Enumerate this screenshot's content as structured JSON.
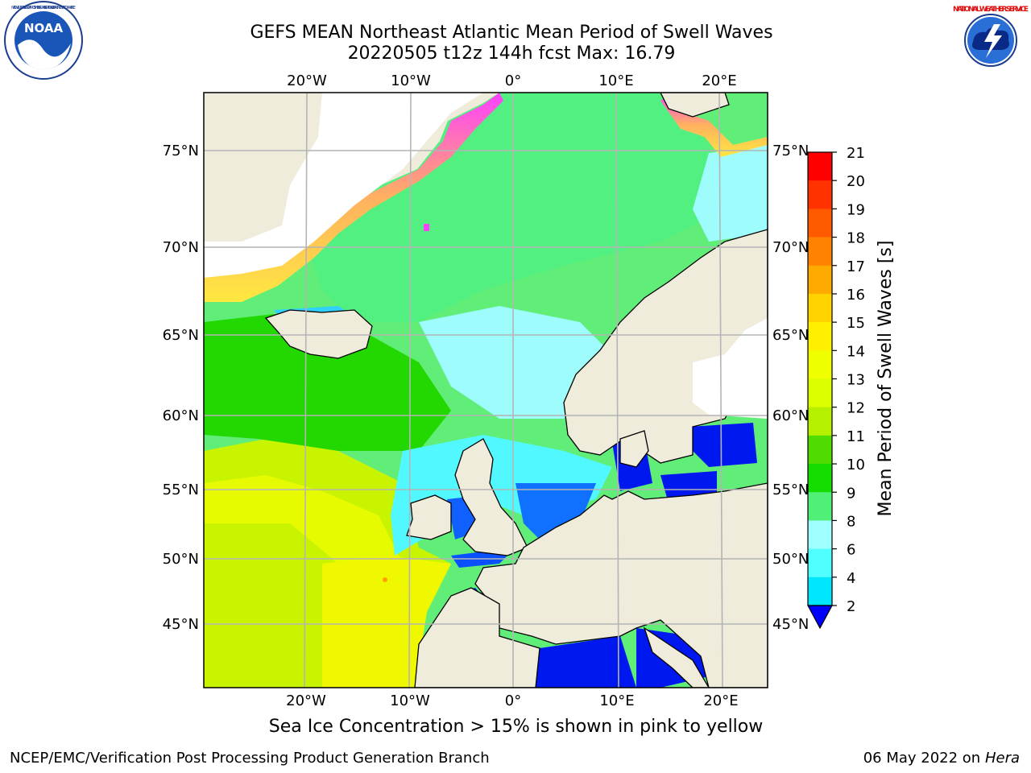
{
  "header": {
    "title_line1": "GEFS MEAN Northeast Atlantic Mean Period of Swell Waves",
    "title_line2": "20220505 t12z 144h fcst   Max: 16.79"
  },
  "logos": {
    "left_icon": "noaa-logo",
    "left_text": "NOAA",
    "left_ring_text": "NATIONAL OCEANIC AND ATMOSPHERIC ADMINISTRATION · U.S. DEPARTMENT OF COMMERCE",
    "right_icon": "nws-logo",
    "right_ring_text": "NATIONAL WEATHER SERVICE"
  },
  "map": {
    "lon_labels": [
      "20°W",
      "10°W",
      "0°",
      "10°E",
      "20°E"
    ],
    "lat_labels": [
      "75°N",
      "70°N",
      "65°N",
      "60°N",
      "55°N",
      "50°N",
      "45°N"
    ],
    "colors": {
      "land": "#efecdc",
      "gridline": "#b4b4b4"
    }
  },
  "colorbar": {
    "label": "Mean Period of Swell Waves [s]",
    "ticks": [
      "21",
      "20",
      "19",
      "18",
      "17",
      "16",
      "15",
      "14",
      "13",
      "12",
      "11",
      "10",
      "9",
      "8",
      "6",
      "4",
      "2"
    ],
    "colors": [
      "#ff0000",
      "#ff3200",
      "#ff5a00",
      "#ff8200",
      "#ffaa00",
      "#ffd200",
      "#fff000",
      "#f0ff00",
      "#dcff00",
      "#b4f000",
      "#50dc00",
      "#14dc00",
      "#50f078",
      "#a0ffff",
      "#50ffff",
      "#00e6ff",
      "#00b4ff",
      "#0064ff"
    ],
    "under_color": "#0000ff"
  },
  "note": "Sea Ice Concentration > 15% is shown in pink to yellow",
  "footer": {
    "left": "NCEP/EMC/Verification Post Processing Product Generation Branch",
    "date": "06 May 2022 on",
    "machine": "Hera"
  }
}
